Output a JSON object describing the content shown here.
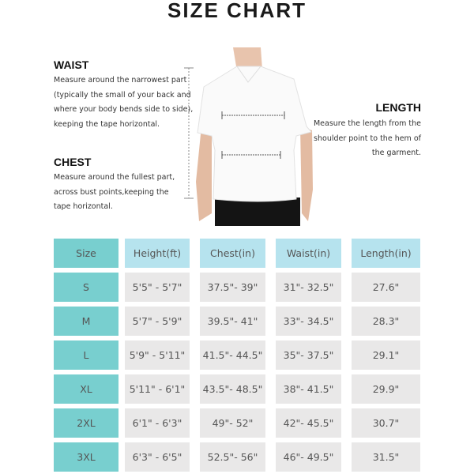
{
  "title": "SIZE  CHART",
  "waist": {
    "heading": "WAIST",
    "lines": [
      "Measure around the narrowest part",
      "(typically the small of your back and",
      "where your body bends side to side),",
      "keeping the tape horizontal."
    ]
  },
  "chest": {
    "heading": "CHEST",
    "lines": [
      "Measure around the fullest part,",
      "across bust points,keeping the",
      "tape horizontal."
    ]
  },
  "length": {
    "heading": "LENGTH",
    "lines": [
      "Measure the length from the",
      "shoulder point to the hem of",
      "the garment."
    ]
  },
  "colors": {
    "size_cell": "#78cfcf",
    "header_cell": "#b6e3ee",
    "data_cell": "#e9e8e8"
  },
  "table": {
    "headers": [
      "Size",
      "Height(ft)",
      "Chest(in)",
      "Waist(in)",
      "Length(in)"
    ],
    "rows": [
      [
        "S",
        "5'5\" - 5'7\"",
        "37.5\"- 39\"",
        "31\"- 32.5\"",
        "27.6\""
      ],
      [
        "M",
        "5'7\" - 5'9\"",
        "39.5\"- 41\"",
        "33\"- 34.5\"",
        "28.3\""
      ],
      [
        "L",
        "5'9\" - 5'11\"",
        "41.5\"- 44.5\"",
        "35\"- 37.5\"",
        "29.1\""
      ],
      [
        "XL",
        "5'11\" - 6'1\"",
        "43.5\"- 48.5\"",
        "38\"- 41.5\"",
        "29.9\""
      ],
      [
        "2XL",
        "6'1\" - 6'3\"",
        "49\"- 52\"",
        "42\"- 45.5\"",
        "30.7\""
      ],
      [
        "3XL",
        "6'3\" - 6'5\"",
        "52.5\"- 56\"",
        "46\"- 49.5\"",
        "31.5\""
      ]
    ]
  }
}
